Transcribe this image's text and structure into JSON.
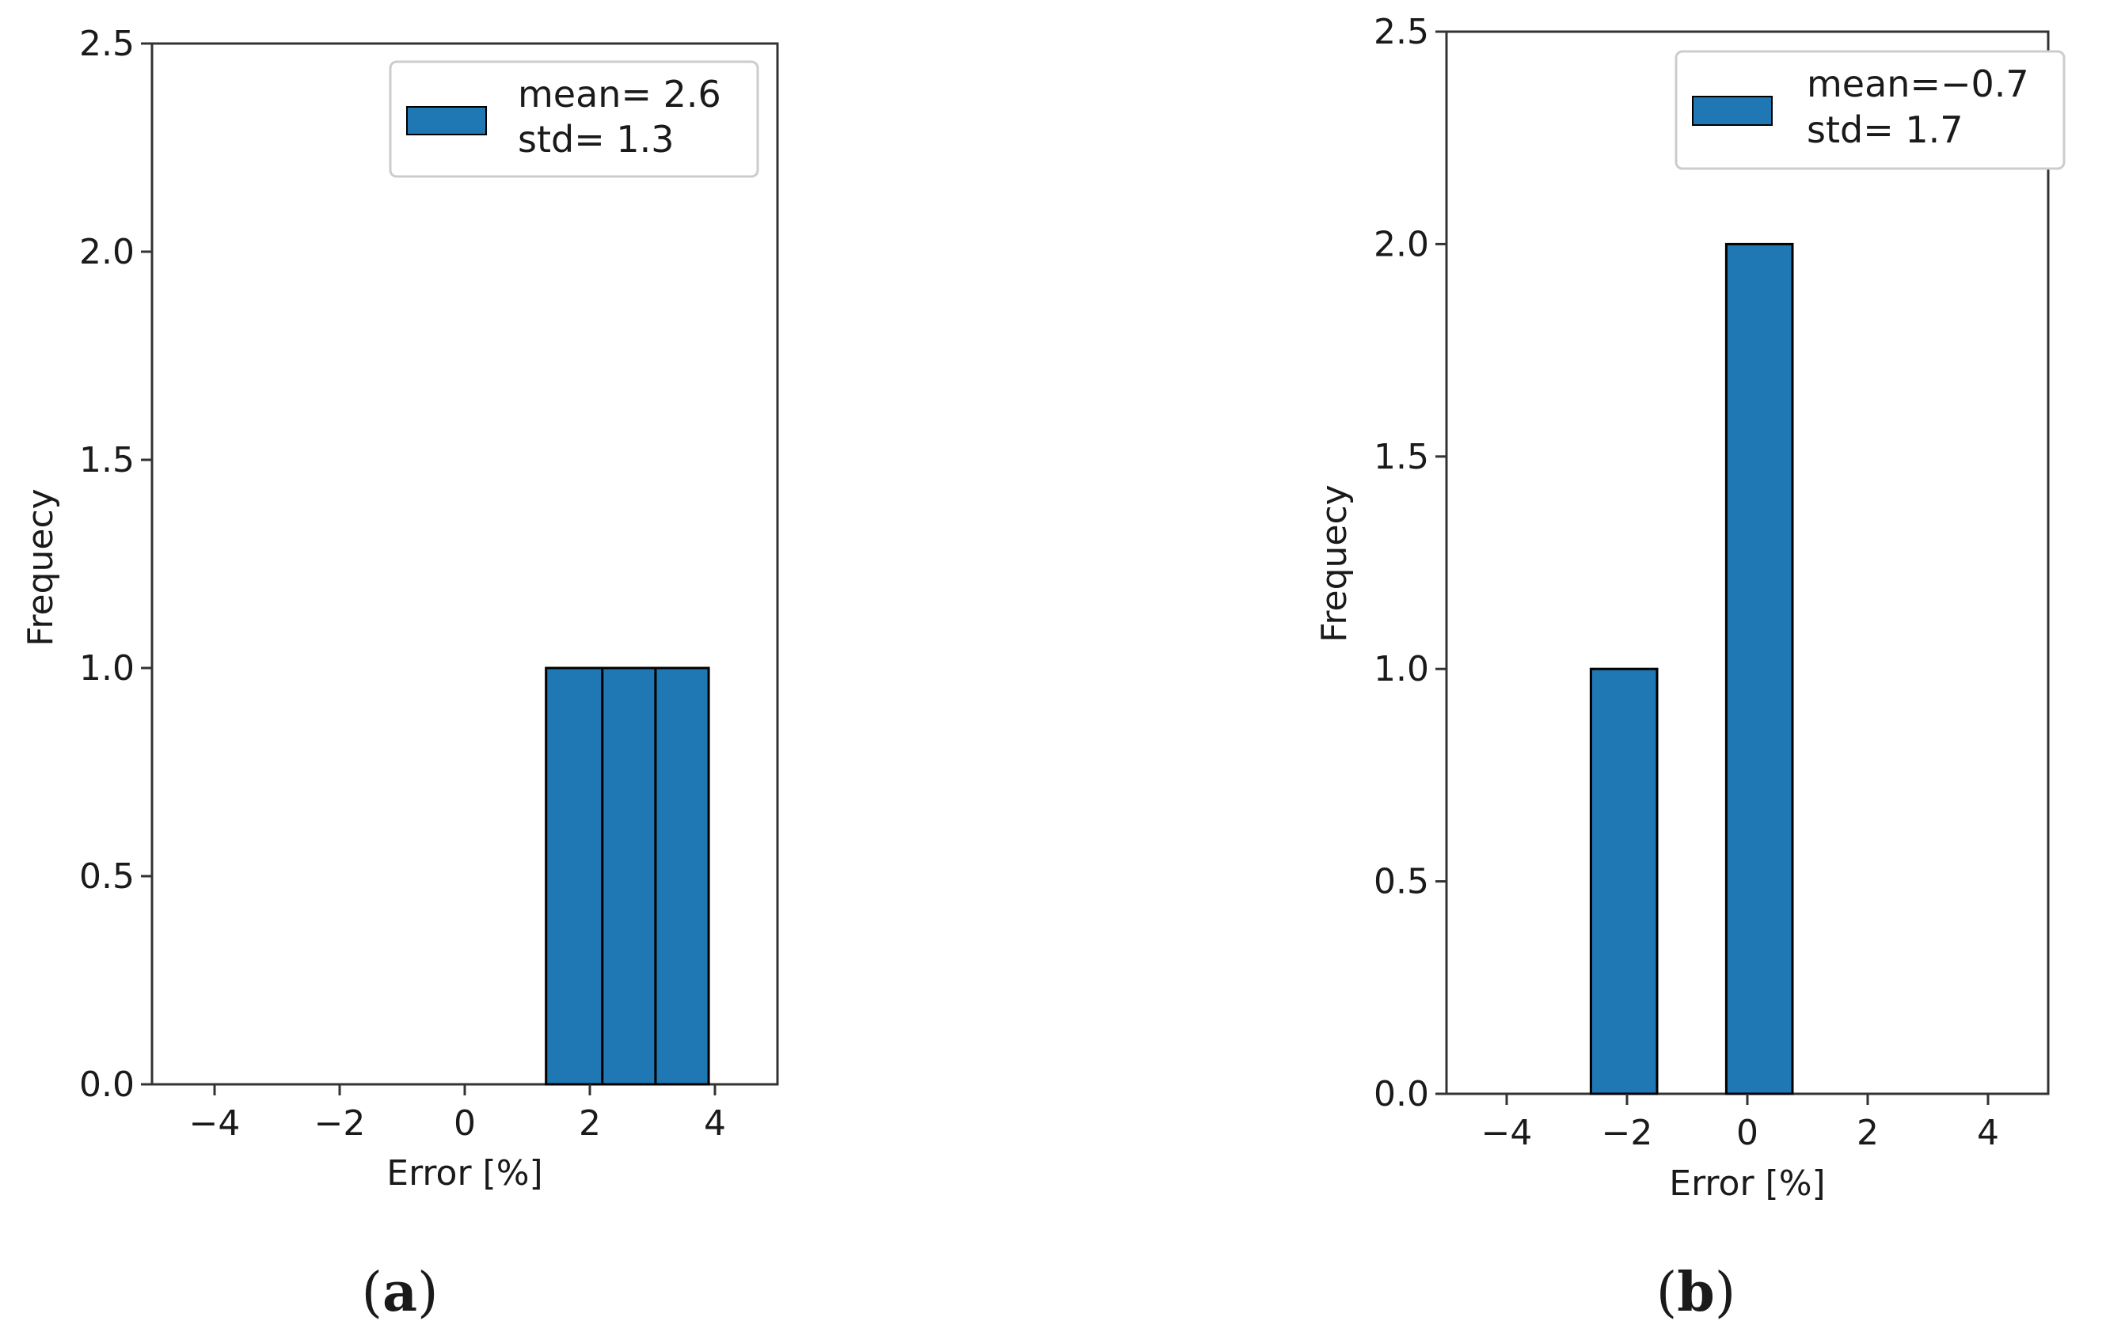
{
  "chart_data": [
    {
      "type": "bar",
      "panel_label": "a",
      "xlabel": "Error [%]",
      "ylabel": "Frequecy",
      "xlim": [
        -5,
        5
      ],
      "ylim": [
        0,
        2.5
      ],
      "xticks": [
        -4,
        -2,
        0,
        2,
        4
      ],
      "xtick_labels": [
        "−4",
        "−2",
        "0",
        "2",
        "4"
      ],
      "yticks": [
        0,
        0.5,
        1.0,
        1.5,
        2.0,
        2.5
      ],
      "ytick_labels": [
        "0.0",
        "0.5",
        "1.0",
        "1.5",
        "2.0",
        "2.5"
      ],
      "bins": [
        {
          "x0": 1.3,
          "x1": 2.2,
          "value": 1
        },
        {
          "x0": 2.2,
          "x1": 3.05,
          "value": 1
        },
        {
          "x0": 3.05,
          "x1": 3.9,
          "value": 1
        }
      ],
      "legend": {
        "line1": "mean= 2.6",
        "line2": "std= 1.3",
        "placement": "top-right"
      },
      "bar_color": "#1f77b4"
    },
    {
      "type": "bar",
      "panel_label": "b",
      "xlabel": "Error [%]",
      "ylabel": "Frequecy",
      "xlim": [
        -5,
        5
      ],
      "ylim": [
        0,
        2.5
      ],
      "xticks": [
        -4,
        -2,
        0,
        2,
        4
      ],
      "xtick_labels": [
        "−4",
        "−2",
        "0",
        "2",
        "4"
      ],
      "yticks": [
        0,
        0.5,
        1.0,
        1.5,
        2.0,
        2.5
      ],
      "ytick_labels": [
        "0.0",
        "0.5",
        "1.0",
        "1.5",
        "2.0",
        "2.5"
      ],
      "bins": [
        {
          "x0": -2.6,
          "x1": -1.5,
          "value": 1
        },
        {
          "x0": -0.35,
          "x1": 0.75,
          "value": 2
        }
      ],
      "legend": {
        "line1": "mean=−0.7",
        "line2": "std= 1.7",
        "placement": "top-right"
      },
      "bar_color": "#1f77b4"
    }
  ]
}
